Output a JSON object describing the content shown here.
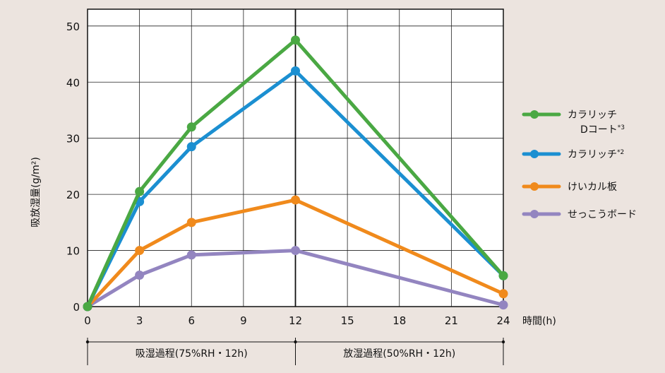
{
  "chart_data": {
    "type": "line",
    "ylabel": "吸放湿量(g/m²)",
    "xlabel": "時間(h)",
    "xlim": [
      0,
      24
    ],
    "ylim": [
      0,
      53
    ],
    "x_ticks": [
      0,
      3,
      6,
      9,
      12,
      15,
      18,
      21,
      24
    ],
    "y_ticks": [
      0,
      10,
      20,
      30,
      40,
      50
    ],
    "grid": true,
    "legend_position": "right",
    "series": [
      {
        "name_line1": "カラリッチ",
        "name_line2": "Dコート",
        "name_sup": "*3",
        "color": "#4aa843",
        "x": [
          0,
          3,
          6,
          12,
          24
        ],
        "y": [
          0,
          20.5,
          32,
          47.5,
          5.5
        ]
      },
      {
        "name_line1": "カラリッチ",
        "name_sup": "*2",
        "color": "#1b8fd1",
        "x": [
          0,
          3,
          6,
          12,
          24
        ],
        "y": [
          0,
          18.7,
          28.5,
          42,
          5.5
        ]
      },
      {
        "name_line1": "けいカル板",
        "color": "#f08a1c",
        "x": [
          0,
          3,
          6,
          12,
          24
        ],
        "y": [
          0,
          10,
          15,
          19,
          2.3
        ]
      },
      {
        "name_line1": "せっこうボード",
        "color": "#9385c0",
        "x": [
          0,
          3,
          6,
          12,
          24
        ],
        "y": [
          0,
          5.6,
          9.2,
          10,
          0.3
        ]
      }
    ],
    "phases": [
      {
        "label": "吸湿過程(75%RH・12h)",
        "x_start": 0,
        "x_end": 12
      },
      {
        "label": "放湿過程(50%RH・12h)",
        "x_start": 12,
        "x_end": 24
      }
    ]
  }
}
